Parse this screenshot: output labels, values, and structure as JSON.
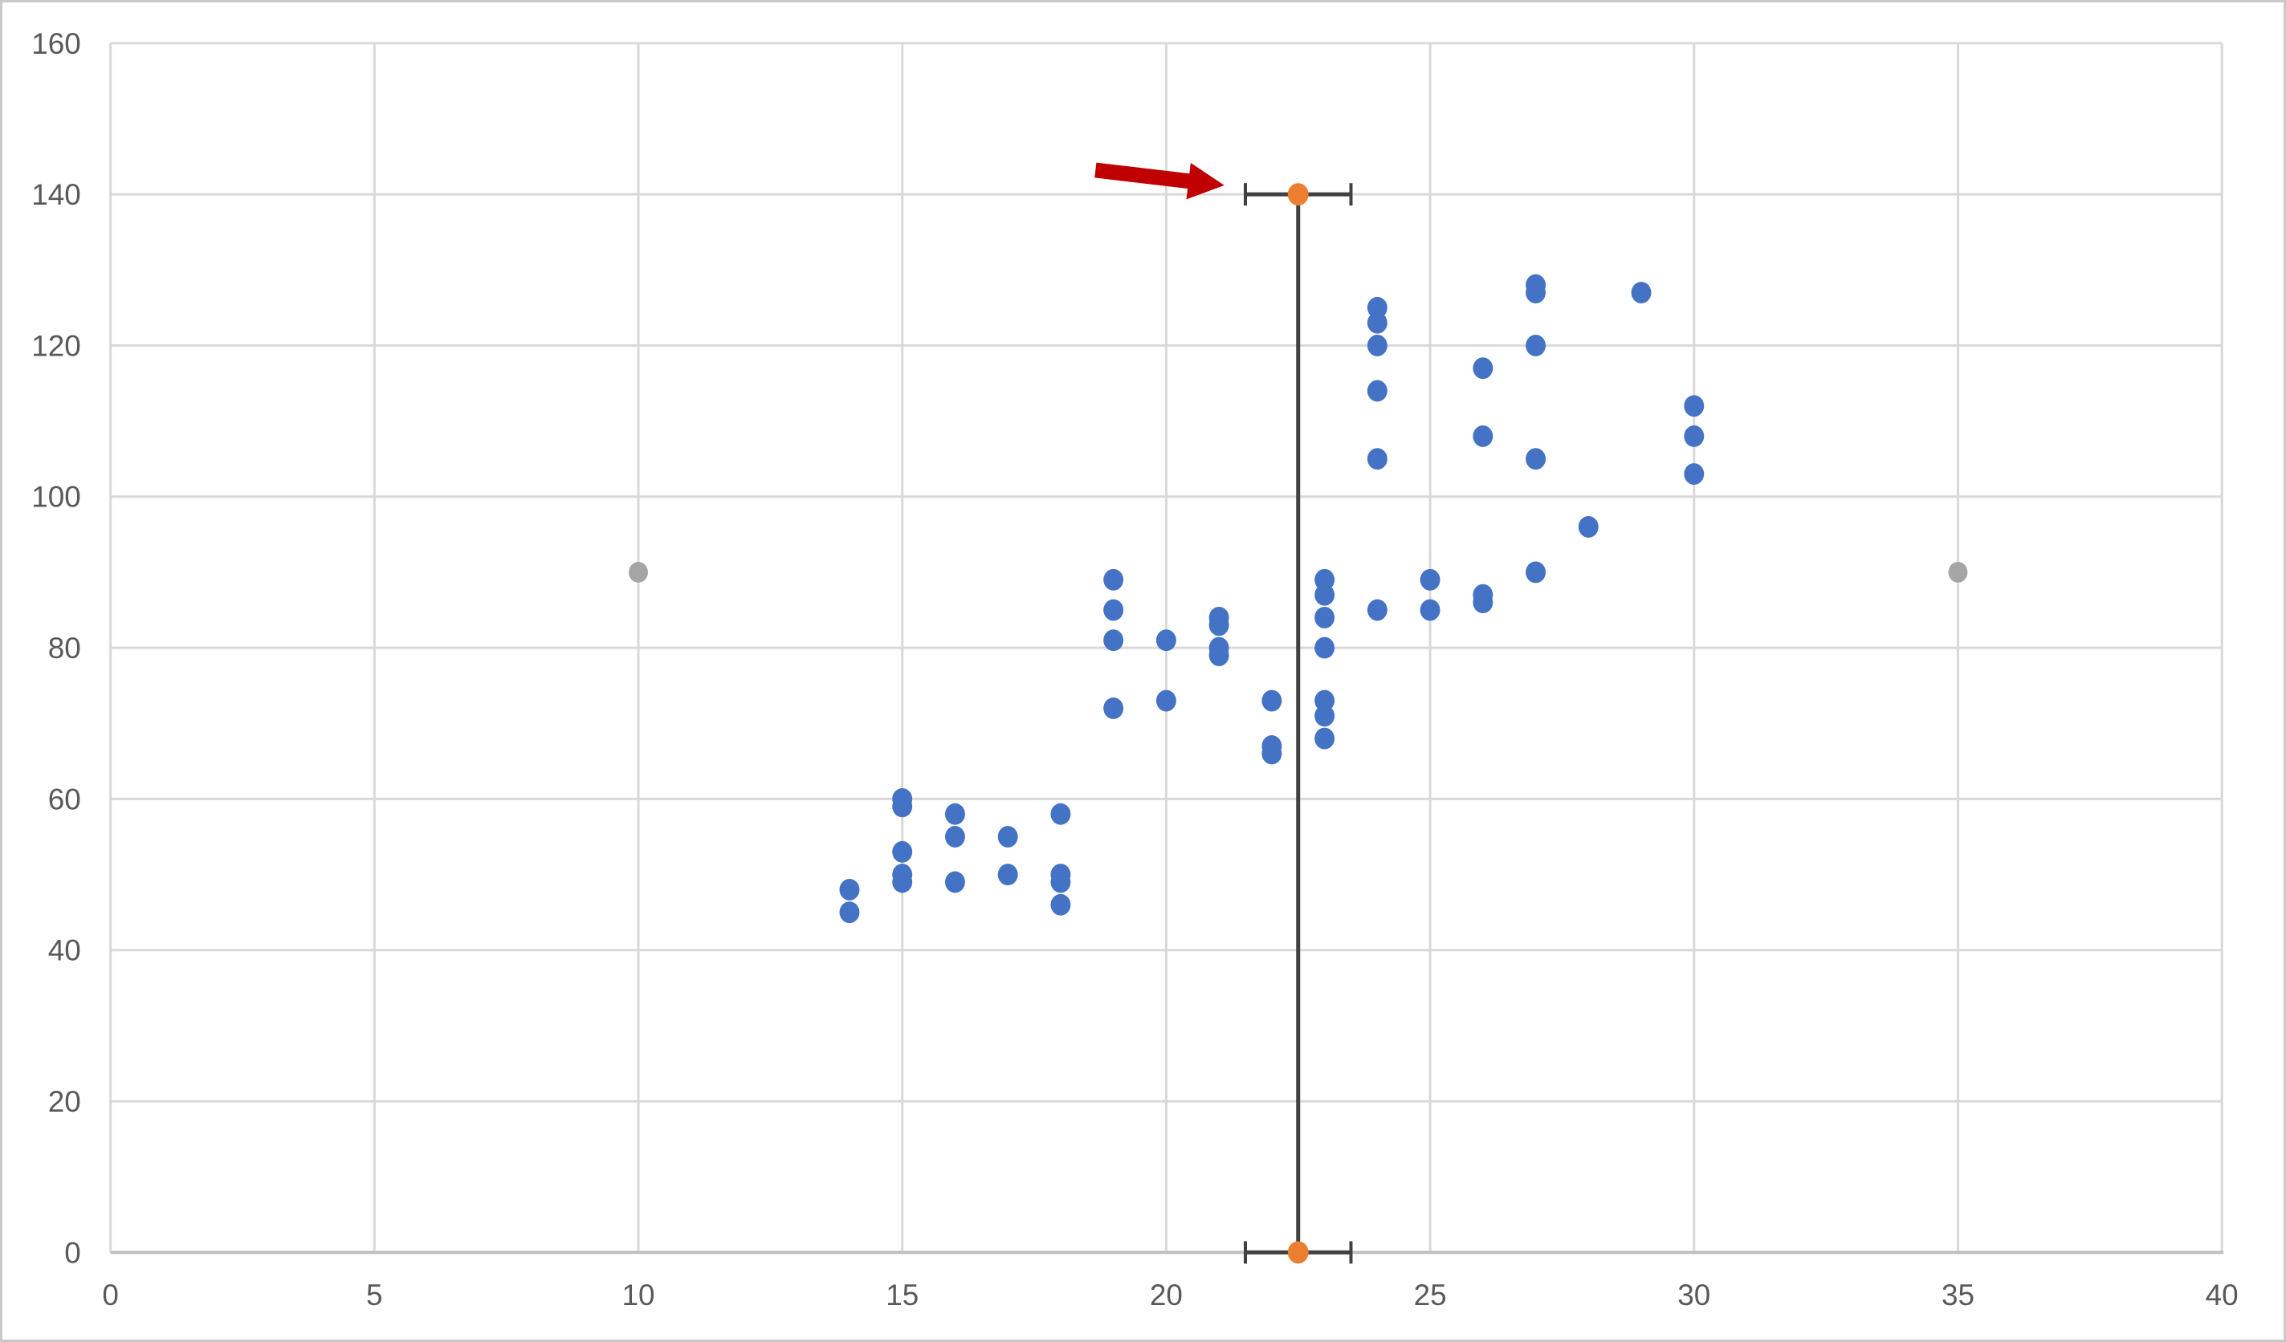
{
  "chart_data": {
    "type": "scatter",
    "title": "",
    "x_axis": {
      "min": 0,
      "max": 40,
      "tick_step": 5,
      "tick_labels": [
        "0",
        "5",
        "10",
        "15",
        "20",
        "25",
        "30",
        "35",
        "40"
      ]
    },
    "y_axis": {
      "min": 0,
      "max": 160,
      "tick_step": 20,
      "tick_labels": [
        "0",
        "20",
        "40",
        "60",
        "80",
        "100",
        "120",
        "140",
        "160"
      ]
    },
    "grid": true,
    "legend": "none",
    "series": [
      {
        "name": "main-scatter-data",
        "type": "scatter",
        "color": "#4472C4",
        "marker_radius": 12.5,
        "points": [
          [
            14,
            48
          ],
          [
            14,
            45
          ],
          [
            15,
            60
          ],
          [
            15,
            59
          ],
          [
            15,
            53
          ],
          [
            15,
            50
          ],
          [
            15,
            49
          ],
          [
            16,
            58
          ],
          [
            16,
            55
          ],
          [
            16,
            49
          ],
          [
            17,
            55
          ],
          [
            17,
            50
          ],
          [
            18,
            58
          ],
          [
            18,
            50
          ],
          [
            18,
            49
          ],
          [
            18,
            46
          ],
          [
            19,
            89
          ],
          [
            19,
            85
          ],
          [
            19,
            81
          ],
          [
            19,
            72
          ],
          [
            20,
            81
          ],
          [
            20,
            73
          ],
          [
            21,
            84
          ],
          [
            21,
            83
          ],
          [
            21,
            80
          ],
          [
            21,
            79
          ],
          [
            22,
            73
          ],
          [
            22,
            67
          ],
          [
            22,
            66
          ],
          [
            23,
            89
          ],
          [
            23,
            87
          ],
          [
            23,
            84
          ],
          [
            23,
            80
          ],
          [
            23,
            73
          ],
          [
            23,
            71
          ],
          [
            23,
            68
          ],
          [
            24,
            125
          ],
          [
            24,
            123
          ],
          [
            24,
            120
          ],
          [
            24,
            114
          ],
          [
            24,
            105
          ],
          [
            24,
            85
          ],
          [
            25,
            89
          ],
          [
            25,
            85
          ],
          [
            26,
            117
          ],
          [
            26,
            108
          ],
          [
            26,
            87
          ],
          [
            26,
            86
          ],
          [
            27,
            128
          ],
          [
            27,
            127
          ],
          [
            27,
            120
          ],
          [
            27,
            105
          ],
          [
            27,
            90
          ],
          [
            28,
            96
          ],
          [
            29,
            127
          ],
          [
            30,
            112
          ],
          [
            30,
            108
          ],
          [
            30,
            103
          ]
        ]
      },
      {
        "name": "gray-reference-points",
        "type": "scatter",
        "color": "#A5A5A5",
        "marker_radius": 12,
        "points": [
          [
            10,
            90
          ],
          [
            35,
            90
          ]
        ]
      },
      {
        "name": "orange-highlight-points",
        "type": "scatter",
        "color": "#ED7D31",
        "marker_radius": 13,
        "points": [
          [
            22.5,
            140
          ],
          [
            22.5,
            0
          ]
        ],
        "x_error": 1,
        "error_bar_color": "#404040",
        "connector": {
          "from": [
            22.5,
            0
          ],
          "to": [
            22.5,
            140
          ],
          "color": "#404040"
        }
      }
    ],
    "annotations": [
      {
        "type": "arrow",
        "name": "red-arrow",
        "color": "#C00000",
        "from_xy": [
          18.66,
          143.2
        ],
        "to_xy": [
          21.1,
          141.2
        ]
      }
    ]
  },
  "colors": {
    "background": "#FFFFFF",
    "frame_border": "#C9C9C9",
    "gridline": "#D9D9D9",
    "axis_line": "#BFBFBF",
    "tick_label": "#595959"
  }
}
